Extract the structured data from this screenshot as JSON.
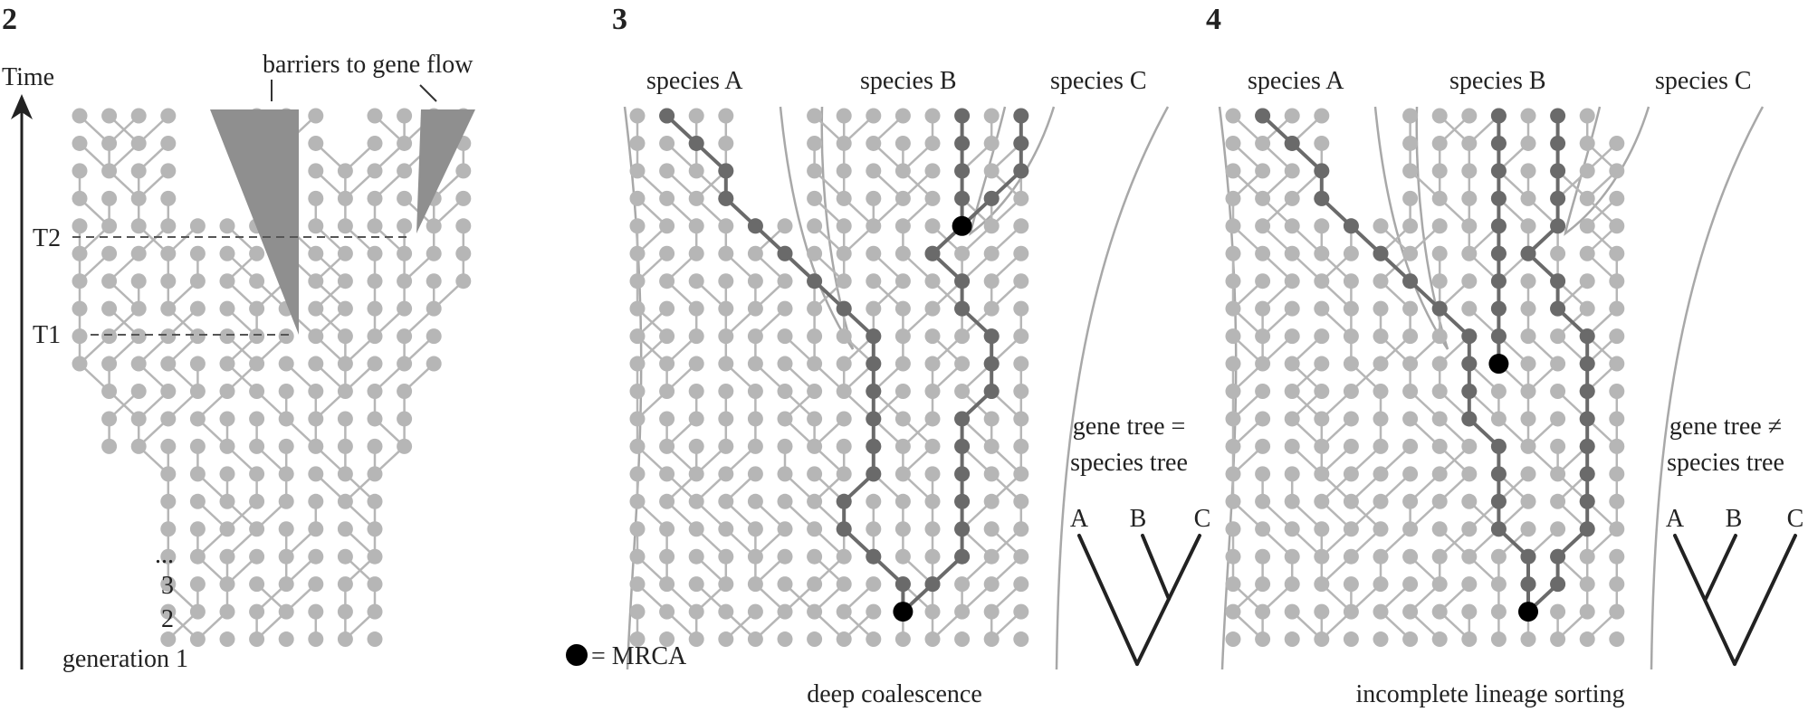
{
  "panels": [
    {
      "number": "2",
      "time_label": "Time",
      "barrier_label": "barriers to gene flow",
      "t2_label": "T2",
      "t1_label": "T1",
      "generation_labels": [
        "...",
        "3",
        "2",
        "generation 1"
      ]
    },
    {
      "number": "3",
      "species": [
        "species A",
        "species B",
        "species C"
      ],
      "tree_caption_line1": "gene tree =",
      "tree_caption_line2": "species tree",
      "tree_leaves": [
        "A",
        "B",
        "C"
      ],
      "legend_text": "= MRCA",
      "caption": "deep coalescence"
    },
    {
      "number": "4",
      "species": [
        "species A",
        "species B",
        "species C"
      ],
      "tree_caption_line1": "gene tree ≠",
      "tree_caption_line2": "species tree",
      "tree_leaves": [
        "A",
        "B",
        "C"
      ],
      "caption": "incomplete lineage sorting"
    }
  ],
  "colors": {
    "dot": "#b6b6b6",
    "dark_lineage": "#6a6a6a",
    "mrca": "#000000",
    "barrier": "#8f8f8f",
    "boundary": "#a8a8a8",
    "dashed": "#555555"
  }
}
